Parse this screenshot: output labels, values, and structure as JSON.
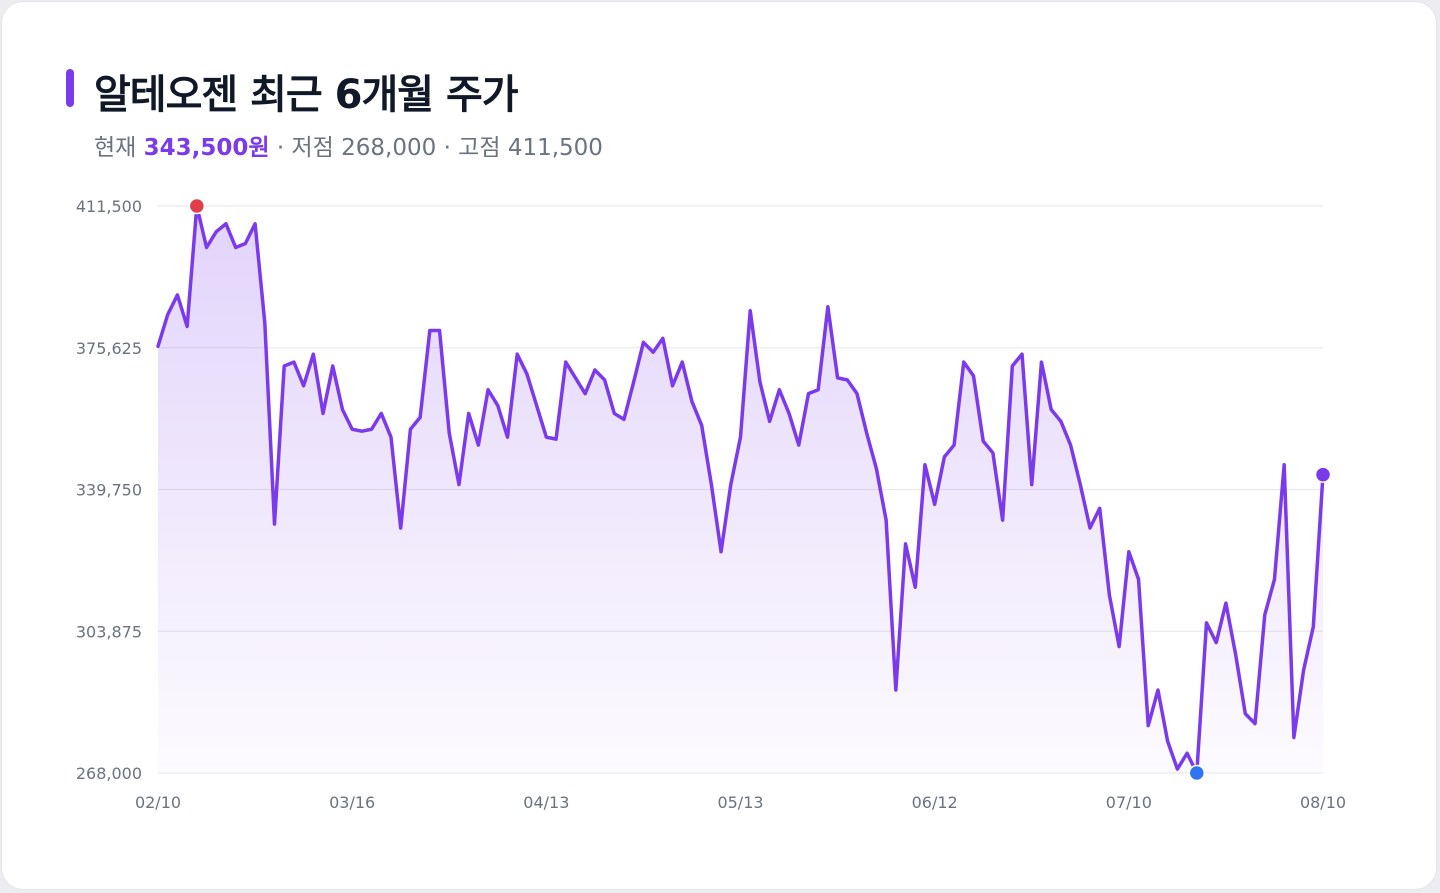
{
  "header": {
    "title": "알테오젠 최근 6개월 주가",
    "current_label": "현재",
    "current_value": "343,500원",
    "low_text": "· 저점 268,000",
    "high_text": "· 고점 411,500"
  },
  "colors": {
    "accent": "#7c3aed",
    "high_marker": "#e23e4a",
    "low_marker": "#2f74f0",
    "grid": "#e6e6ec",
    "text": "#111827",
    "muted": "#6b7280"
  },
  "chart_data": {
    "type": "area",
    "title": "알테오젠 최근 6개월 주가",
    "xlabel": "",
    "ylabel": "",
    "ylim": [
      268000,
      411500
    ],
    "y_ticks": [
      411500,
      375625,
      339750,
      303875,
      268000
    ],
    "y_tick_labels": [
      "411,500",
      "375,625",
      "339,750",
      "303,875",
      "268,000"
    ],
    "x_ticks": [
      "02/10",
      "03/16",
      "04/13",
      "05/13",
      "06/12",
      "07/10",
      "08/10"
    ],
    "grid": true,
    "legend": "none",
    "markers": {
      "high": {
        "index": 4,
        "value": 411500
      },
      "low": {
        "index": 107,
        "value": 268000
      },
      "current": {
        "index": 120,
        "value": 343500
      }
    },
    "series": [
      {
        "values": [
          376000,
          384000,
          389000,
          381000,
          411500,
          401000,
          405000,
          407000,
          401000,
          402000,
          407000,
          382000,
          331000,
          371000,
          372000,
          366000,
          374000,
          359000,
          371000,
          360000,
          355000,
          354500,
          355000,
          359000,
          353000,
          330000,
          355000,
          358000,
          380000,
          380000,
          354000,
          341000,
          359000,
          351000,
          365000,
          361000,
          353000,
          374000,
          369000,
          361000,
          353000,
          352500,
          372000,
          368000,
          364000,
          370000,
          367500,
          359000,
          357500,
          367000,
          377000,
          374500,
          378000,
          366000,
          372000,
          362000,
          356000,
          341000,
          324000,
          341000,
          353000,
          385000,
          367000,
          357000,
          365000,
          359000,
          351000,
          364000,
          365000,
          386000,
          368000,
          367500,
          364000,
          354000,
          345000,
          332000,
          289000,
          326000,
          315000,
          346000,
          336000,
          348000,
          351000,
          372000,
          368500,
          352000,
          349000,
          332000,
          371000,
          374000,
          341000,
          372000,
          360000,
          357000,
          351000,
          341000,
          330000,
          335000,
          313000,
          300000,
          324000,
          317000,
          280000,
          289000,
          276000,
          269000,
          273000,
          268000,
          306000,
          301000,
          311000,
          298000,
          283000,
          280500,
          308000,
          317000,
          346000,
          277000,
          294000,
          305000,
          343500
        ]
      }
    ]
  }
}
